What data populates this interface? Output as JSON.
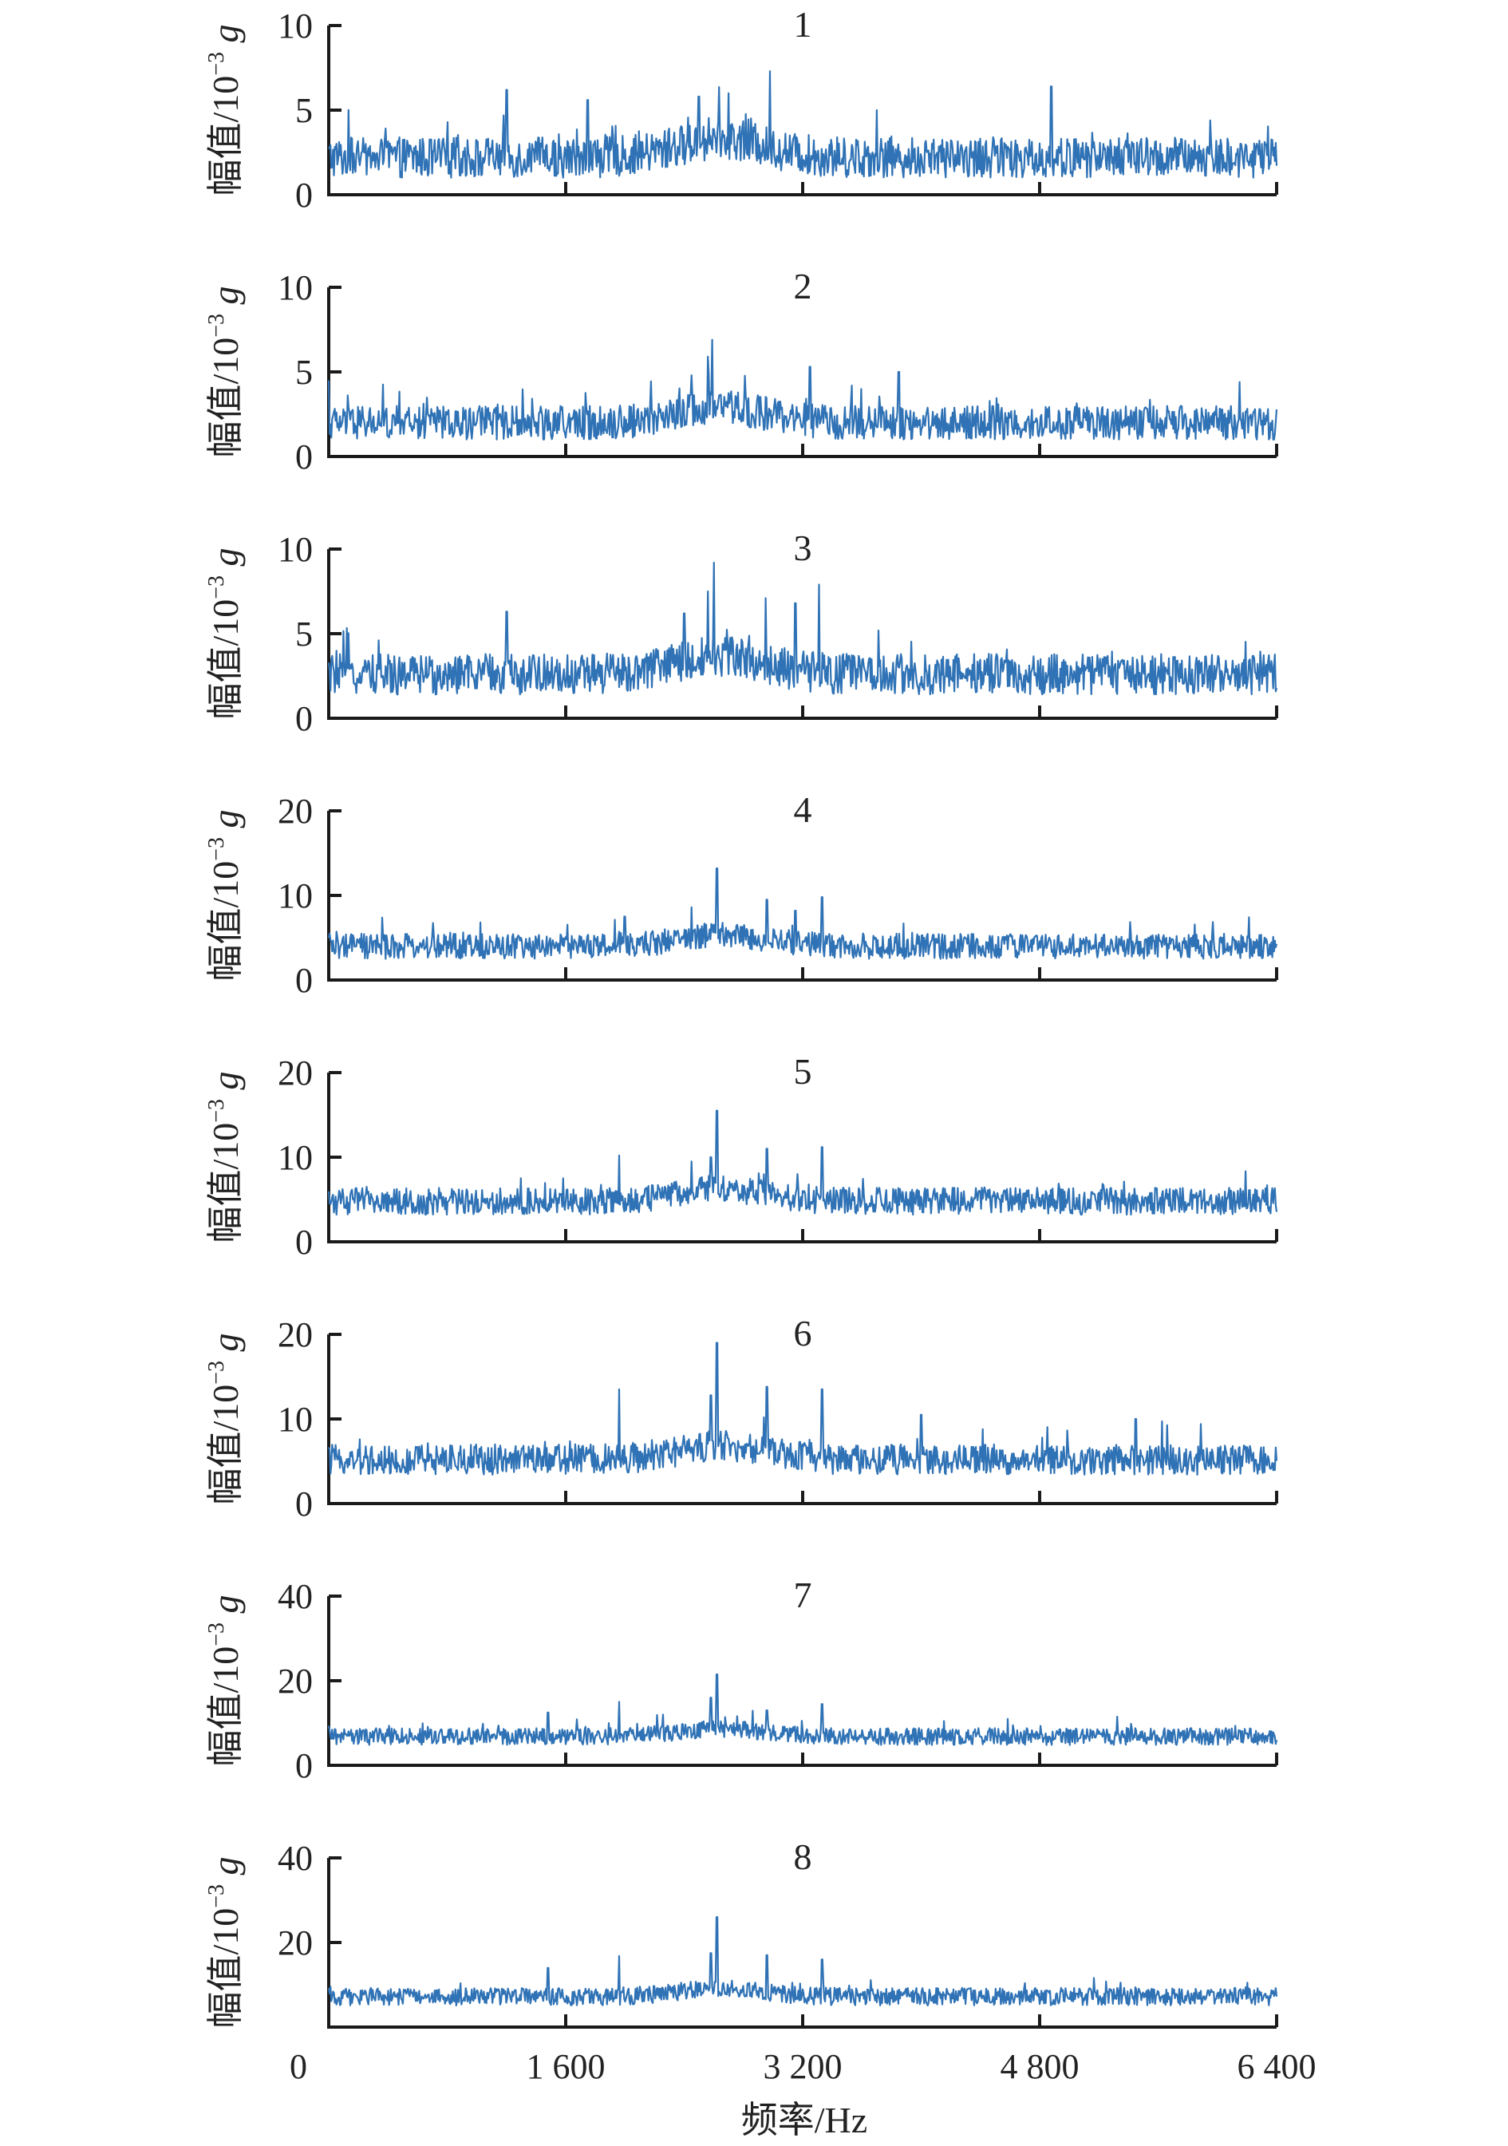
{
  "chart_data": {
    "type": "line",
    "xlabel": "频率/Hz",
    "ylabel_text": "幅值/10",
    "ylabel_exp": "−3",
    "ylabel_unit": " g",
    "xlim": [
      0,
      6400
    ],
    "xticks": [
      0,
      1600,
      3200,
      4800,
      6400
    ],
    "xtick_labels": [
      "0",
      "1 600",
      "3 200",
      "4 800",
      "6 400"
    ],
    "color": "#2f72b5",
    "grid": false,
    "legend": "none",
    "panels": [
      {
        "label": "1",
        "ylim": [
          0,
          10
        ],
        "yticks": [
          0,
          5,
          10
        ],
        "ytick_labels": [
          "0",
          "5",
          "10"
        ],
        "baseline": 2.2,
        "noise": 1.2,
        "peaks": [
          [
            2980,
            7.3
          ],
          [
            4880,
            6.4
          ],
          [
            1200,
            6.2
          ],
          [
            2700,
            6.0
          ],
          [
            2500,
            5.8
          ],
          [
            3700,
            5.0
          ],
          [
            1750,
            5.6
          ]
        ]
      },
      {
        "label": "2",
        "ylim": [
          0,
          10
        ],
        "yticks": [
          0,
          5,
          10
        ],
        "ytick_labels": [
          "0",
          "5",
          "10"
        ],
        "baseline": 2.0,
        "noise": 1.0,
        "peaks": [
          [
            2590,
            6.9
          ],
          [
            2560,
            5.9
          ],
          [
            3250,
            5.3
          ],
          [
            3850,
            5.0
          ],
          [
            2450,
            4.8
          ],
          [
            0,
            4.5
          ],
          [
            6150,
            4.4
          ]
        ]
      },
      {
        "label": "3",
        "ylim": [
          0,
          10
        ],
        "yticks": [
          0,
          5,
          10
        ],
        "ytick_labels": [
          "0",
          "5",
          "10"
        ],
        "baseline": 2.6,
        "noise": 1.2,
        "peaks": [
          [
            2600,
            9.2
          ],
          [
            2560,
            7.5
          ],
          [
            3310,
            7.9
          ],
          [
            2950,
            7.1
          ],
          [
            3150,
            6.8
          ],
          [
            2400,
            6.2
          ],
          [
            1200,
            6.3
          ]
        ]
      },
      {
        "label": "4",
        "ylim": [
          0,
          20
        ],
        "yticks": [
          0,
          10,
          20
        ],
        "ytick_labels": [
          "0",
          "10",
          "20"
        ],
        "baseline": 4.0,
        "noise": 1.5,
        "peaks": [
          [
            2620,
            13.2
          ],
          [
            3330,
            9.8
          ],
          [
            2960,
            9.5
          ],
          [
            2450,
            8.6
          ],
          [
            3150,
            8.2
          ],
          [
            2000,
            7.5
          ]
        ]
      },
      {
        "label": "5",
        "ylim": [
          0,
          20
        ],
        "yticks": [
          0,
          10,
          20
        ],
        "ytick_labels": [
          "0",
          "10",
          "20"
        ],
        "baseline": 4.8,
        "noise": 1.6,
        "peaks": [
          [
            2620,
            15.5
          ],
          [
            2960,
            11.0
          ],
          [
            3330,
            11.2
          ],
          [
            1960,
            10.2
          ],
          [
            2580,
            10.0
          ],
          [
            2450,
            9.5
          ]
        ]
      },
      {
        "label": "6",
        "ylim": [
          0,
          20
        ],
        "yticks": [
          0,
          10,
          20
        ],
        "ytick_labels": [
          "0",
          "10",
          "20"
        ],
        "baseline": 5.2,
        "noise": 1.8,
        "peaks": [
          [
            2620,
            19.0
          ],
          [
            2960,
            13.8
          ],
          [
            3330,
            13.5
          ],
          [
            1960,
            13.5
          ],
          [
            2580,
            12.8
          ],
          [
            4000,
            10.5
          ],
          [
            5450,
            10.0
          ]
        ]
      },
      {
        "label": "7",
        "ylim": [
          0,
          40
        ],
        "yticks": [
          0,
          20,
          40
        ],
        "ytick_labels": [
          "0",
          "20",
          "40"
        ],
        "baseline": 6.8,
        "noise": 2.0,
        "peaks": [
          [
            2620,
            21.5
          ],
          [
            1960,
            15.0
          ],
          [
            2580,
            16.0
          ],
          [
            3330,
            14.5
          ],
          [
            2960,
            13.0
          ],
          [
            1480,
            12.5
          ]
        ]
      },
      {
        "label": "8",
        "ylim": [
          0,
          40
        ],
        "yticks": [
          20,
          40
        ],
        "ytick_labels": [
          "20",
          "40"
        ],
        "baseline": 7.2,
        "noise": 2.1,
        "peaks": [
          [
            2620,
            26.0
          ],
          [
            2580,
            17.5
          ],
          [
            1960,
            16.8
          ],
          [
            2960,
            17.0
          ],
          [
            3330,
            16.0
          ],
          [
            1480,
            14.0
          ]
        ]
      }
    ]
  }
}
